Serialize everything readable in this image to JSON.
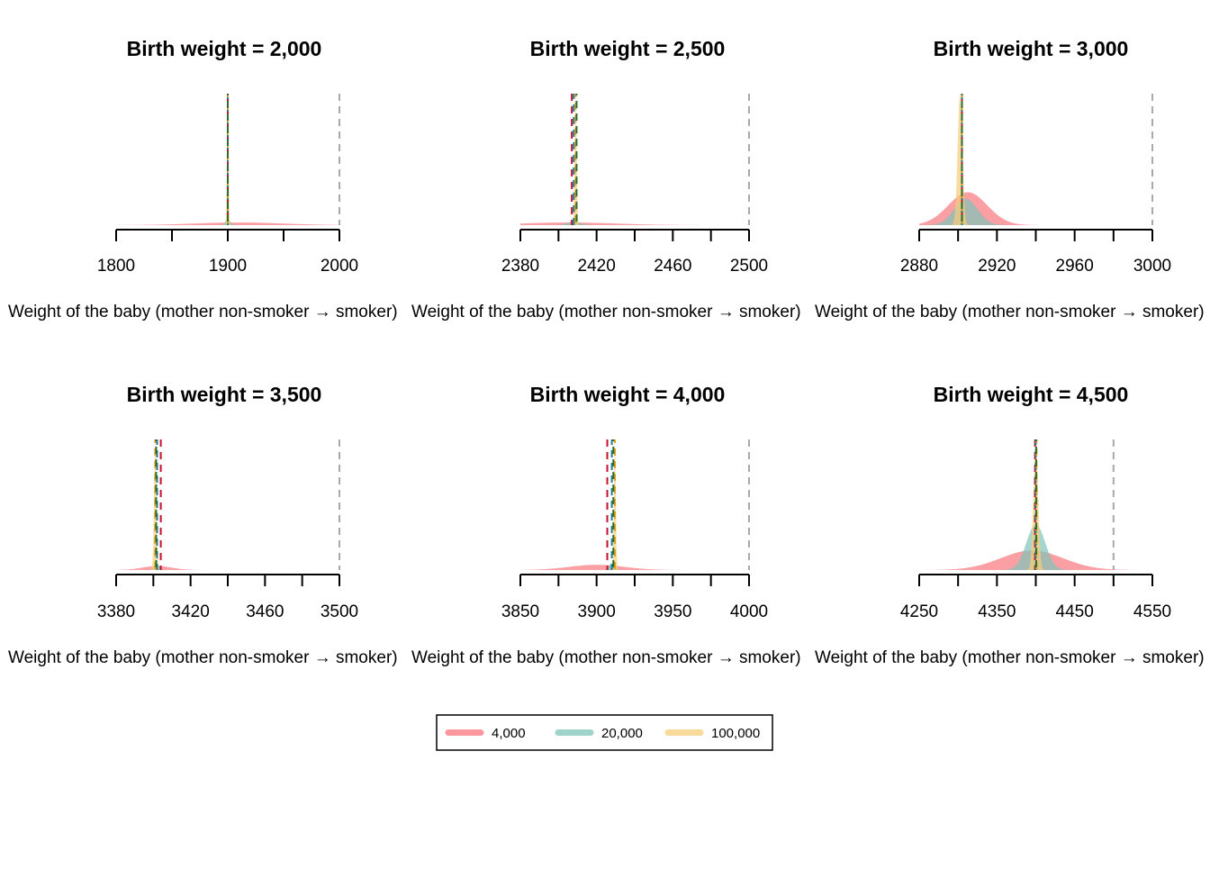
{
  "chart_data": {
    "type": "area",
    "legend": {
      "position": "bottom-center",
      "entries": [
        {
          "label": "4,000",
          "color": "#f8767d"
        },
        {
          "label": "20,000",
          "color": "#7fc4b8"
        },
        {
          "label": "100,000",
          "color": "#f5cd79"
        }
      ]
    },
    "reference_line_color": "#a9a9a9",
    "mean_line_colors": [
      "#c8102e",
      "#1b7f9a",
      "#e3a21a",
      "#2e6b30"
    ],
    "panels": [
      {
        "title": "Birth weight = 2,000",
        "xlabel": "Weight of the baby (mother non-smoker → smoker)",
        "xlim": [
          1800,
          2000
        ],
        "ticks": [
          1800,
          1850,
          1900,
          1950,
          2000
        ],
        "tick_labels": [
          "1800",
          "1900",
          "2000"
        ],
        "reference_value": 2000,
        "mean_lines": [
          1900,
          1900,
          1900,
          1900
        ],
        "series": [
          {
            "center": 1910,
            "spread": 40,
            "height": 0.02
          },
          {
            "center": 1900,
            "spread": 2,
            "height": 0.05
          },
          {
            "center": 1900,
            "spread": 0.6,
            "height": 1.0
          }
        ]
      },
      {
        "title": "Birth weight = 2,500",
        "xlabel": "Weight of the baby (mother non-smoker → smoker)",
        "xlim": [
          2380,
          2500
        ],
        "ticks": [
          2380,
          2400,
          2420,
          2440,
          2460,
          2480,
          2500
        ],
        "tick_labels": [
          "2380",
          "2420",
          "2460",
          "2500"
        ],
        "reference_value": 2500,
        "mean_lines": [
          2407,
          2408,
          2409,
          2409.5
        ],
        "series": [
          {
            "center": 2405,
            "spread": 25,
            "height": 0.02
          },
          {
            "center": 2408,
            "spread": 3,
            "height": 0.03
          },
          {
            "center": 2409,
            "spread": 0.5,
            "height": 1.0
          }
        ]
      },
      {
        "title": "Birth weight = 3,000",
        "xlabel": "Weight of the baby (mother non-smoker → smoker)",
        "xlim": [
          2880,
          3000
        ],
        "ticks": [
          2880,
          2900,
          2920,
          2940,
          2960,
          2980,
          3000
        ],
        "tick_labels": [
          "2880",
          "2920",
          "2960",
          "3000"
        ],
        "reference_value": 3000,
        "mean_lines": [
          2902,
          2902,
          2902,
          2902
        ],
        "series": [
          {
            "center": 2905,
            "spread": 10,
            "height": 0.25
          },
          {
            "center": 2904,
            "spread": 6,
            "height": 0.2
          },
          {
            "center": 2901,
            "spread": 1.2,
            "height": 1.0
          }
        ]
      },
      {
        "title": "Birth weight = 3,500",
        "xlabel": "Weight of the baby (mother non-smoker → smoker)",
        "xlim": [
          3380,
          3500
        ],
        "ticks": [
          3380,
          3400,
          3420,
          3440,
          3460,
          3480,
          3500
        ],
        "tick_labels": [
          "3380",
          "3420",
          "3460",
          "3500"
        ],
        "reference_value": 3500,
        "mean_lines": [
          3404,
          3402,
          3401,
          3401.5
        ],
        "series": [
          {
            "center": 3402,
            "spread": 8,
            "height": 0.03
          },
          {
            "center": 3402,
            "spread": 1.5,
            "height": 0.04
          },
          {
            "center": 3401,
            "spread": 0.6,
            "height": 1.0
          }
        ]
      },
      {
        "title": "Birth weight = 4,000",
        "xlabel": "Weight of the baby (mother non-smoker → smoker)",
        "xlim": [
          3850,
          4000
        ],
        "ticks": [
          3850,
          3875,
          3900,
          3925,
          3950,
          3975,
          4000
        ],
        "tick_labels": [
          "3850",
          "3900",
          "3950",
          "4000"
        ],
        "reference_value": 4000,
        "mean_lines": [
          3907,
          3910,
          3912,
          3911
        ],
        "series": [
          {
            "center": 3900,
            "spread": 18,
            "height": 0.04
          },
          {
            "center": 3910,
            "spread": 2,
            "height": 0.05
          },
          {
            "center": 3912,
            "spread": 0.6,
            "height": 1.0
          }
        ]
      },
      {
        "title": "Birth weight = 4,500",
        "xlabel": "Weight of the baby (mother non-smoker → smoker)",
        "xlim": [
          4250,
          4550
        ],
        "ticks": [
          4250,
          4300,
          4350,
          4400,
          4450,
          4500,
          4550
        ],
        "tick_labels": [
          "4250",
          "4350",
          "4450",
          "4550"
        ],
        "reference_value": 4500,
        "mean_lines": [
          4399,
          4400,
          4401,
          4400.5
        ],
        "series": [
          {
            "center": 4395,
            "spread": 40,
            "height": 0.15
          },
          {
            "center": 4400,
            "spread": 12,
            "height": 0.35
          },
          {
            "center": 4400,
            "spread": 3,
            "height": 1.0
          }
        ]
      }
    ]
  }
}
